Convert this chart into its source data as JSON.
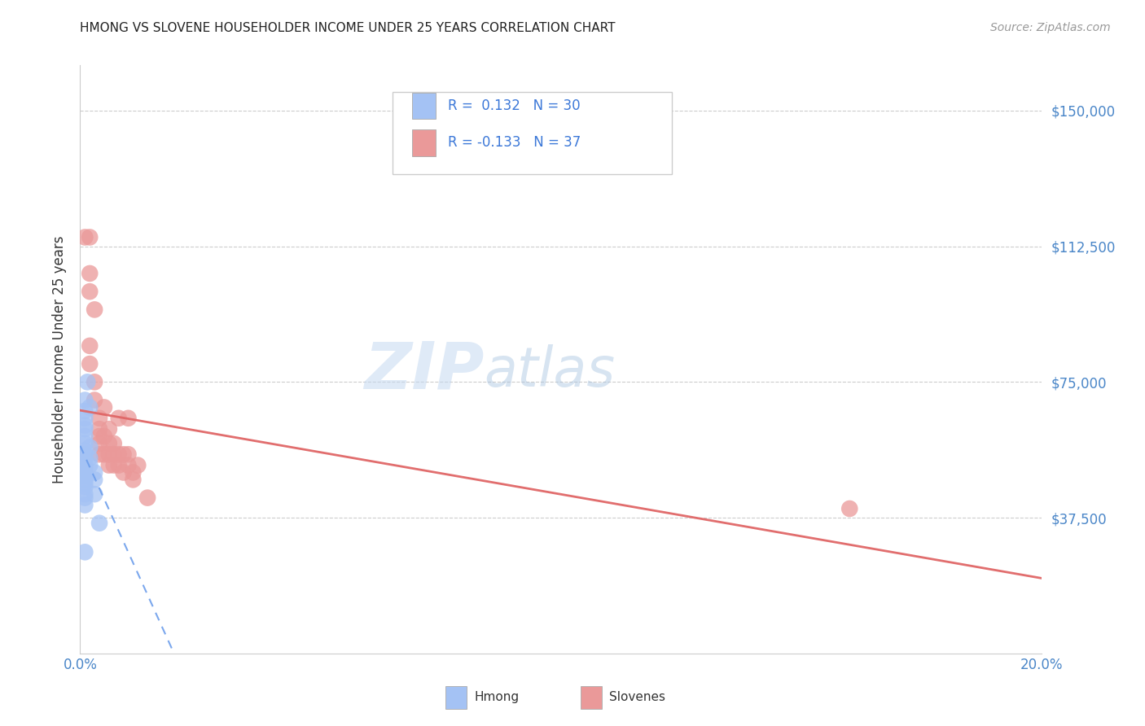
{
  "title": "HMONG VS SLOVENE HOUSEHOLDER INCOME UNDER 25 YEARS CORRELATION CHART",
  "source": "Source: ZipAtlas.com",
  "ylabel": "Householder Income Under 25 years",
  "xlim": [
    0.0,
    0.2
  ],
  "ylim": [
    0,
    162500
  ],
  "yticks": [
    37500,
    75000,
    112500,
    150000
  ],
  "ytick_labels": [
    "$37,500",
    "$75,000",
    "$112,500",
    "$150,000"
  ],
  "xticks": [
    0.0,
    0.04,
    0.08,
    0.12,
    0.16,
    0.2
  ],
  "xtick_labels": [
    "0.0%",
    "",
    "",
    "",
    "",
    "20.0%"
  ],
  "hmong_color": "#a4c2f4",
  "slovene_color": "#ea9999",
  "trend_hmong_color": "#6d9eeb",
  "trend_slovene_color": "#e06666",
  "watermark_zip": "ZIP",
  "watermark_atlas": "atlas",
  "background_color": "#ffffff",
  "grid_color": "#cccccc",
  "hmong_points": [
    [
      0.001,
      70000
    ],
    [
      0.001,
      67000
    ],
    [
      0.001,
      65000
    ],
    [
      0.001,
      63000
    ],
    [
      0.001,
      62000
    ],
    [
      0.001,
      60000
    ],
    [
      0.001,
      58000
    ],
    [
      0.001,
      56000
    ],
    [
      0.001,
      55000
    ],
    [
      0.001,
      54000
    ],
    [
      0.001,
      52000
    ],
    [
      0.001,
      51000
    ],
    [
      0.001,
      50000
    ],
    [
      0.001,
      49000
    ],
    [
      0.001,
      48000
    ],
    [
      0.001,
      47000
    ],
    [
      0.001,
      46000
    ],
    [
      0.001,
      44000
    ],
    [
      0.001,
      43000
    ],
    [
      0.001,
      41000
    ],
    [
      0.0015,
      75000
    ],
    [
      0.002,
      68000
    ],
    [
      0.002,
      57000
    ],
    [
      0.002,
      54000
    ],
    [
      0.002,
      52000
    ],
    [
      0.003,
      50000
    ],
    [
      0.003,
      48000
    ],
    [
      0.003,
      44000
    ],
    [
      0.004,
      36000
    ],
    [
      0.001,
      28000
    ]
  ],
  "slovene_points": [
    [
      0.001,
      115000
    ],
    [
      0.002,
      115000
    ],
    [
      0.002,
      105000
    ],
    [
      0.002,
      100000
    ],
    [
      0.002,
      85000
    ],
    [
      0.002,
      80000
    ],
    [
      0.003,
      95000
    ],
    [
      0.003,
      75000
    ],
    [
      0.003,
      70000
    ],
    [
      0.004,
      65000
    ],
    [
      0.004,
      62000
    ],
    [
      0.004,
      60000
    ],
    [
      0.004,
      58000
    ],
    [
      0.004,
      55000
    ],
    [
      0.005,
      68000
    ],
    [
      0.005,
      60000
    ],
    [
      0.005,
      55000
    ],
    [
      0.006,
      62000
    ],
    [
      0.006,
      58000
    ],
    [
      0.006,
      55000
    ],
    [
      0.006,
      52000
    ],
    [
      0.007,
      58000
    ],
    [
      0.007,
      55000
    ],
    [
      0.007,
      52000
    ],
    [
      0.008,
      65000
    ],
    [
      0.008,
      55000
    ],
    [
      0.008,
      52000
    ],
    [
      0.009,
      55000
    ],
    [
      0.009,
      50000
    ],
    [
      0.01,
      65000
    ],
    [
      0.01,
      55000
    ],
    [
      0.01,
      52000
    ],
    [
      0.011,
      50000
    ],
    [
      0.011,
      48000
    ],
    [
      0.012,
      52000
    ],
    [
      0.014,
      43000
    ],
    [
      0.16,
      40000
    ]
  ]
}
